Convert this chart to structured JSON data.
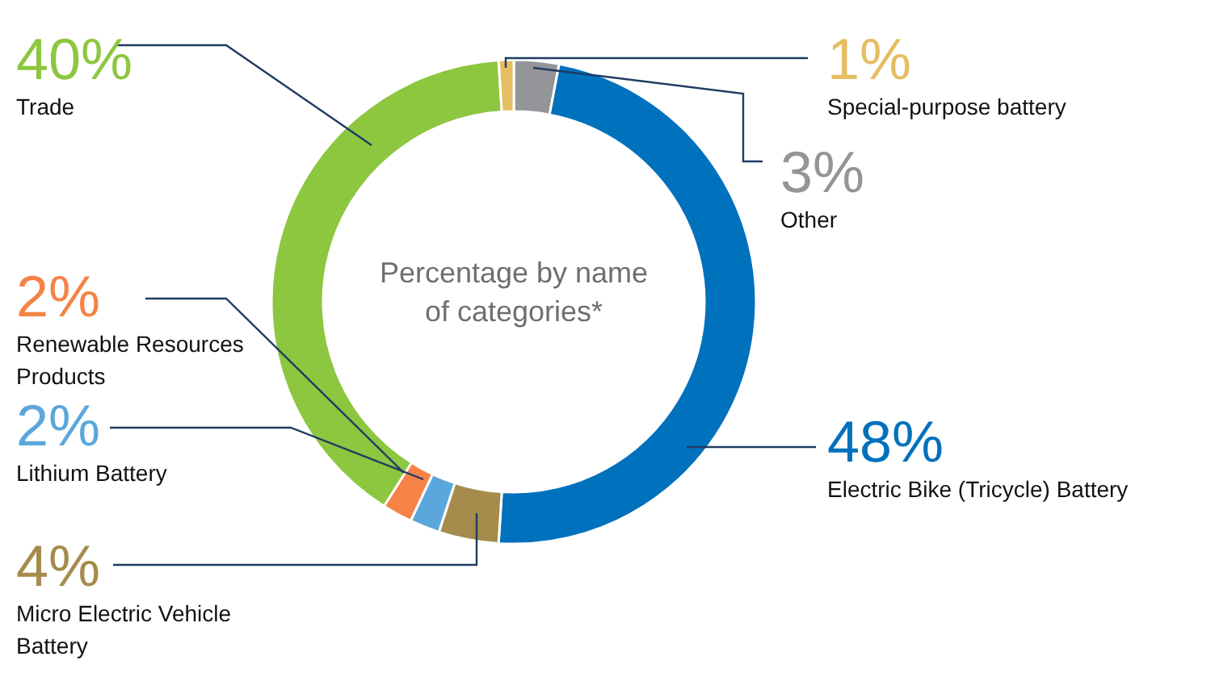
{
  "chart_data": {
    "type": "donut",
    "title": "Percentage by name of categories*",
    "categories": [
      "Other",
      "Electric Bike (Tricycle) Battery",
      "Micro Electric Vehicle Battery",
      "Lithium Battery",
      "Renewable Resources Products",
      "Trade",
      "Special-purpose battery"
    ],
    "values": [
      3,
      48,
      4,
      2,
      2,
      40,
      1
    ],
    "colors": [
      "#939598",
      "#0071bc",
      "#a58c4c",
      "#5ba7dd",
      "#f58345",
      "#8dc63f",
      "#e5bd62"
    ],
    "value_labels": [
      "3%",
      "48%",
      "4%",
      "2%",
      "2%",
      "40%",
      "1%"
    ]
  }
}
